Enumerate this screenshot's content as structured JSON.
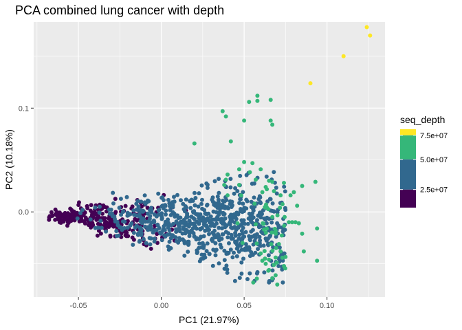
{
  "chart_data": {
    "type": "scatter",
    "title": "PCA combined lung cancer with depth",
    "xlabel": "PC1 (21.97%)",
    "ylabel": "PC2 (10.18%)",
    "xlim": [
      -0.077,
      0.135
    ],
    "ylim": [
      -0.082,
      0.183
    ],
    "x_ticks": [
      -0.05,
      0.0,
      0.05,
      0.1
    ],
    "x_tick_labels": [
      "-0.05",
      "0.00",
      "0.05",
      "0.10"
    ],
    "y_ticks": [
      0.0,
      0.1
    ],
    "y_tick_labels": [
      "0.0",
      "0.1"
    ],
    "grid": true,
    "background": "#ebebeb",
    "legend": {
      "title": "seq_depth",
      "placement": "right",
      "labels": [
        "7.5e+07",
        "5.0e+07",
        "2.5e+07"
      ],
      "scale": {
        "min": 20000000.0,
        "max": 85000000.0
      },
      "colors": [
        "#440154",
        "#31688e",
        "#35b779",
        "#fde725"
      ],
      "breakpoints": [
        35000000.0,
        60000000.0,
        80000000.0
      ]
    },
    "points": [
      {
        "x": 0.124,
        "y": 0.178,
        "depth": 90000000.0
      },
      {
        "x": 0.126,
        "y": 0.17,
        "depth": 90000000.0
      },
      {
        "x": 0.11,
        "y": 0.15,
        "depth": 89000000.0
      },
      {
        "x": 0.09,
        "y": 0.124,
        "depth": 88000000.0
      },
      {
        "x": 0.058,
        "y": 0.112,
        "depth": 70000000.0
      },
      {
        "x": 0.053,
        "y": 0.106,
        "depth": 68000000.0
      },
      {
        "x": 0.066,
        "y": 0.108,
        "depth": 69000000.0
      },
      {
        "x": 0.058,
        "y": 0.107,
        "depth": 65000000.0
      },
      {
        "x": 0.037,
        "y": 0.097,
        "depth": 66000000.0
      },
      {
        "x": 0.039,
        "y": 0.092,
        "depth": 62000000.0
      },
      {
        "x": 0.066,
        "y": 0.088,
        "depth": 67000000.0
      },
      {
        "x": 0.067,
        "y": 0.084,
        "depth": 68000000.0
      },
      {
        "x": 0.05,
        "y": 0.088,
        "depth": 64000000.0
      },
      {
        "x": 0.042,
        "y": 0.068,
        "depth": 63000000.0
      },
      {
        "x": 0.02,
        "y": 0.066,
        "depth": 61000000.0
      },
      {
        "x": 0.05,
        "y": 0.048,
        "depth": 65000000.0
      },
      {
        "x": 0.055,
        "y": 0.047,
        "depth": 66000000.0
      },
      {
        "x": 0.047,
        "y": 0.041,
        "depth": 64000000.0
      },
      {
        "x": 0.06,
        "y": 0.041,
        "depth": 68000000.0
      },
      {
        "x": 0.065,
        "y": 0.03,
        "depth": 67000000.0
      },
      {
        "x": 0.067,
        "y": 0.029,
        "depth": 69000000.0
      },
      {
        "x": 0.04,
        "y": 0.036,
        "depth": 62000000.0
      },
      {
        "x": 0.039,
        "y": 0.031,
        "depth": 61000000.0
      },
      {
        "x": 0.038,
        "y": 0.026,
        "depth": 63000000.0
      },
      {
        "x": 0.047,
        "y": 0.026,
        "depth": 64000000.0
      },
      {
        "x": 0.057,
        "y": 0.031,
        "depth": 65000000.0
      },
      {
        "x": 0.063,
        "y": 0.024,
        "depth": 66000000.0
      },
      {
        "x": 0.074,
        "y": 0.028,
        "depth": 68000000.0
      },
      {
        "x": 0.068,
        "y": 0.02,
        "depth": 66000000.0
      },
      {
        "x": 0.078,
        "y": 0.016,
        "depth": 69000000.0
      },
      {
        "x": 0.072,
        "y": 0.016,
        "depth": 65000000.0
      },
      {
        "x": 0.085,
        "y": 0.025,
        "depth": 70000000.0
      },
      {
        "x": 0.08,
        "y": 0.019,
        "depth": 68000000.0
      },
      {
        "x": 0.082,
        "y": 0.006,
        "depth": 67000000.0
      },
      {
        "x": 0.093,
        "y": 0.029,
        "depth": 71000000.0
      },
      {
        "x": 0.061,
        "y": 0.019,
        "depth": 64000000.0
      },
      {
        "x": 0.067,
        "y": -0.005,
        "depth": 65000000.0
      },
      {
        "x": 0.077,
        "y": -0.01,
        "depth": 67000000.0
      },
      {
        "x": 0.079,
        "y": -0.01,
        "depth": 66000000.0
      },
      {
        "x": 0.081,
        "y": -0.01,
        "depth": 68000000.0
      },
      {
        "x": 0.083,
        "y": -0.011,
        "depth": 69000000.0
      },
      {
        "x": 0.094,
        "y": -0.016,
        "depth": 70000000.0
      },
      {
        "x": 0.085,
        "y": -0.021,
        "depth": 68000000.0
      },
      {
        "x": 0.062,
        "y": -0.017,
        "depth": 64000000.0
      },
      {
        "x": 0.071,
        "y": -0.031,
        "depth": 65000000.0
      },
      {
        "x": 0.072,
        "y": -0.038,
        "depth": 66000000.0
      },
      {
        "x": 0.069,
        "y": -0.044,
        "depth": 65000000.0
      },
      {
        "x": 0.06,
        "y": -0.04,
        "depth": 63000000.0
      },
      {
        "x": 0.061,
        "y": -0.047,
        "depth": 64000000.0
      },
      {
        "x": 0.065,
        "y": -0.046,
        "depth": 64000000.0
      },
      {
        "x": 0.063,
        "y": -0.05,
        "depth": 63000000.0
      },
      {
        "x": 0.086,
        "y": -0.038,
        "depth": 69000000.0
      },
      {
        "x": 0.094,
        "y": -0.047,
        "depth": 70000000.0
      },
      {
        "x": 0.068,
        "y": -0.051,
        "depth": 64000000.0
      },
      {
        "x": 0.065,
        "y": -0.056,
        "depth": 63000000.0
      },
      {
        "x": 0.067,
        "y": -0.064,
        "depth": 63000000.0
      },
      {
        "x": 0.07,
        "y": -0.07,
        "depth": 65000000.0
      },
      {
        "x": 0.046,
        "y": -0.011,
        "depth": 62000000.0
      },
      {
        "x": 0.057,
        "y": -0.012,
        "depth": 62000000.0
      },
      {
        "x": 0.04,
        "y": 0.016,
        "depth": 61000000.0
      }
    ],
    "cluster": {
      "seed": 7,
      "count": 1050,
      "x_min": -0.068,
      "x_max": 0.075,
      "depth_start": 22000000.0,
      "depth_end": 58000000.0
    }
  }
}
